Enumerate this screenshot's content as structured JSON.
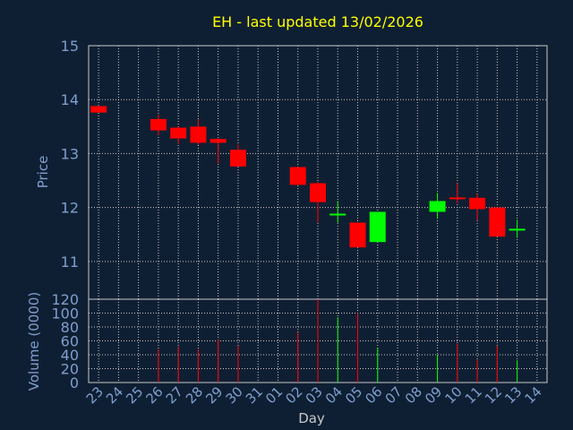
{
  "chart_data": {
    "type": "candlestick",
    "title": "EH - last updated 13/02/2026",
    "xlabel": "Day",
    "colors": {
      "up": "#00ff00",
      "down": "#ff0000",
      "background": "#0f1f33",
      "text": "#7f9fcf",
      "title": "#ffff00",
      "grid": "#c8c8c8"
    },
    "price_panel": {
      "ylabel": "Price",
      "ylim": [
        10.3,
        15
      ],
      "yticks": [
        "11",
        "12",
        "13",
        "14",
        "15"
      ],
      "grid": true
    },
    "volume_panel": {
      "ylabel": "Volume (0000)",
      "ylim": [
        0,
        120
      ],
      "yticks": [
        "0",
        "20",
        "40",
        "60",
        "80",
        "100",
        "120"
      ],
      "grid": true
    },
    "x_labels": [
      "23",
      "24",
      "25",
      "26",
      "27",
      "28",
      "29",
      "30",
      "31",
      "01",
      "02",
      "03",
      "04",
      "05",
      "06",
      "07",
      "08",
      "09",
      "10",
      "11",
      "12",
      "13",
      "14"
    ],
    "candles": [
      {
        "i": 0,
        "open": 13.88,
        "close": 13.76,
        "high": 13.88,
        "low": 13.76,
        "volume": 0
      },
      {
        "i": 3,
        "open": 13.64,
        "close": 13.43,
        "high": 13.72,
        "low": 13.34,
        "volume": 48
      },
      {
        "i": 4,
        "open": 13.48,
        "close": 13.28,
        "high": 13.5,
        "low": 13.18,
        "volume": 52
      },
      {
        "i": 5,
        "open": 13.5,
        "close": 13.2,
        "high": 13.64,
        "low": 13.16,
        "volume": 48
      },
      {
        "i": 6,
        "open": 13.27,
        "close": 13.2,
        "high": 13.28,
        "low": 12.82,
        "volume": 62
      },
      {
        "i": 7,
        "open": 13.07,
        "close": 12.76,
        "high": 13.17,
        "low": 12.76,
        "volume": 53
      },
      {
        "i": 10,
        "open": 12.75,
        "close": 12.42,
        "high": 12.75,
        "low": 12.42,
        "volume": 72
      },
      {
        "i": 11,
        "open": 12.45,
        "close": 12.1,
        "high": 12.48,
        "low": 11.72,
        "volume": 120
      },
      {
        "i": 12,
        "open": 11.85,
        "close": 11.87,
        "high": 12.12,
        "low": 11.72,
        "volume": 94
      },
      {
        "i": 13,
        "open": 11.72,
        "close": 11.26,
        "high": 11.72,
        "low": 11.26,
        "volume": 100
      },
      {
        "i": 14,
        "open": 11.36,
        "close": 11.92,
        "high": 11.92,
        "low": 11.36,
        "volume": 50
      },
      {
        "i": 17,
        "open": 11.92,
        "close": 12.12,
        "high": 12.27,
        "low": 11.79,
        "volume": 40
      },
      {
        "i": 18,
        "open": 12.17,
        "close": 12.15,
        "high": 12.45,
        "low": 12.08,
        "volume": 56
      },
      {
        "i": 19,
        "open": 12.18,
        "close": 11.97,
        "high": 12.25,
        "low": 11.76,
        "volume": 33
      },
      {
        "i": 20,
        "open": 12.0,
        "close": 11.46,
        "high": 12.0,
        "low": 11.46,
        "volume": 53
      },
      {
        "i": 21,
        "open": 11.57,
        "close": 11.59,
        "high": 11.77,
        "low": 11.44,
        "volume": 32
      }
    ]
  }
}
